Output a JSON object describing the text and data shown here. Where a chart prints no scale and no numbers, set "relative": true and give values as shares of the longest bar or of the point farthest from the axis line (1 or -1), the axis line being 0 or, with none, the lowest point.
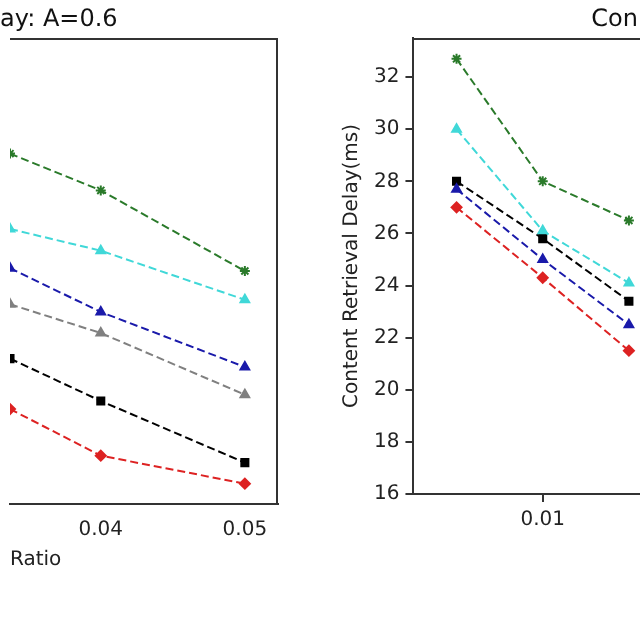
{
  "chart_data": [
    {
      "type": "line",
      "title": "ay: A=0.6",
      "xlabel": "Ratio",
      "relative": true,
      "x": [
        0.0337,
        0.04,
        0.05
      ],
      "xlim": [
        0.0337,
        0.0523
      ],
      "xticks": [
        0.04,
        0.05
      ],
      "line_style": "dashed",
      "grid": false,
      "legend": false,
      "series": [
        {
          "color": "#2a7a2a",
          "marker": "cross",
          "values": [
            1,
            0.895,
            0.665
          ]
        },
        {
          "color": "#40d8d8",
          "marker": "triangle",
          "values": [
            0.785,
            0.723,
            0.583
          ]
        },
        {
          "color": "#1a1aaa",
          "marker": "triangle",
          "values": [
            0.673,
            0.548,
            0.391
          ]
        },
        {
          "color": "#808080",
          "marker": "triangle",
          "values": [
            0.57,
            0.488,
            0.312
          ]
        },
        {
          "color": "#000000",
          "marker": "square",
          "values": [
            0.415,
            0.294,
            0.118
          ]
        },
        {
          "color": "#dd2222",
          "marker": "diamond",
          "values": [
            0.271,
            0.138,
            0.058
          ]
        }
      ]
    },
    {
      "type": "line",
      "title": "Con",
      "ylabel": "Content Retrieval Delay(ms)",
      "categories": [
        null,
        "0.01",
        null
      ],
      "ylim": [
        16,
        33.5
      ],
      "yticks": [
        16,
        18,
        20,
        22,
        24,
        26,
        28,
        30,
        32
      ],
      "line_style": "dashed",
      "grid": false,
      "legend": false,
      "series": [
        {
          "color": "#2a7a2a",
          "marker": "cross",
          "values": [
            32.7,
            28.0,
            26.5
          ]
        },
        {
          "color": "#40d8d8",
          "marker": "triangle",
          "values": [
            30.0,
            26.1,
            24.1
          ]
        },
        {
          "color": "#1a1aaa",
          "marker": "triangle",
          "values": [
            27.7,
            25.0,
            22.5
          ]
        },
        {
          "color": "#000000",
          "marker": "square",
          "values": [
            28.0,
            25.8,
            23.4
          ]
        },
        {
          "color": "#dd2222",
          "marker": "diamond",
          "values": [
            27.0,
            24.3,
            21.5
          ]
        }
      ]
    }
  ]
}
